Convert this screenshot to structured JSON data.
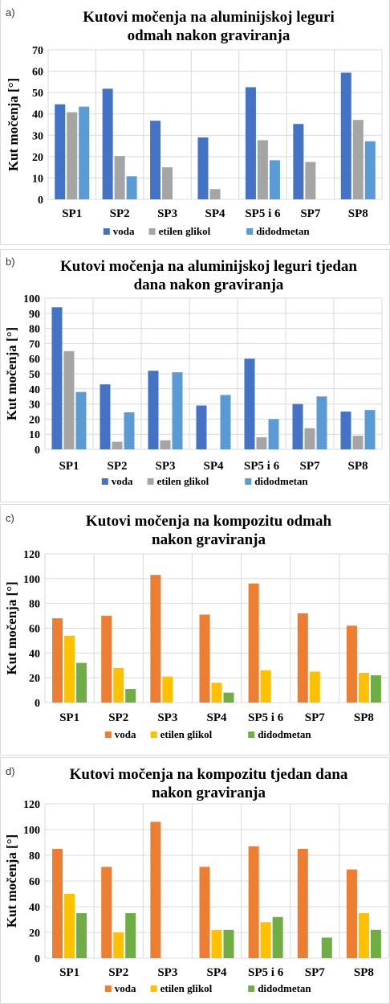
{
  "chart_data": [
    {
      "panel_label": "a)",
      "type": "bar",
      "title_lines": [
        "Kutovi močenja na aluminijskoj leguri",
        "odmah nakon graviranja"
      ],
      "ylabel": "Kut močenja [°]",
      "ylim": [
        0,
        70
      ],
      "yticks": [
        0,
        10,
        20,
        30,
        40,
        50,
        60,
        70
      ],
      "categories": [
        "SP1",
        "SP2",
        "SP3",
        "SP4",
        "SP5 i 6",
        "SP7",
        "SP8"
      ],
      "series": [
        {
          "name": "voda",
          "color": "#4472C4",
          "values": [
            44.5,
            51.8,
            36.8,
            29.0,
            52.5,
            35.3,
            59.3
          ]
        },
        {
          "name": "etilen glikol",
          "color": "#A5A5A5",
          "values": [
            40.8,
            20.3,
            15.0,
            4.8,
            27.7,
            17.5,
            37.2
          ]
        },
        {
          "name": "didodmetan",
          "color": "#5B9BD5",
          "values": [
            43.4,
            10.8,
            0,
            0,
            18.3,
            0,
            27.2
          ]
        }
      ],
      "grid": true,
      "legend": "bottom"
    },
    {
      "panel_label": "b)",
      "type": "bar",
      "title_lines": [
        "Kutovi močenja na aluminijskoj leguri tjedan",
        "dana nakon graviranja"
      ],
      "ylabel": "Kut močenja [°]",
      "ylim": [
        0,
        100
      ],
      "yticks": [
        0,
        10,
        20,
        30,
        40,
        50,
        60,
        70,
        80,
        90,
        100
      ],
      "categories": [
        "SP1",
        "SP2",
        "SP3",
        "SP4",
        "SP5 i 6",
        "SP7",
        "SP8"
      ],
      "series": [
        {
          "name": "voda",
          "color": "#4472C4",
          "values": [
            94,
            43,
            52,
            29,
            60,
            30,
            25
          ]
        },
        {
          "name": "etilen glikol",
          "color": "#A5A5A5",
          "values": [
            65,
            5,
            6,
            0,
            8,
            14,
            9
          ]
        },
        {
          "name": "didodmetan",
          "color": "#5B9BD5",
          "values": [
            38,
            24.5,
            51,
            36,
            20,
            35,
            26
          ]
        }
      ],
      "grid": true,
      "legend": "bottom"
    },
    {
      "panel_label": "c)",
      "type": "bar",
      "title_lines": [
        "Kutovi močenja na kompozitu odmah",
        "nakon graviranja"
      ],
      "ylabel": "Kut močenja [°]",
      "ylim": [
        0,
        120
      ],
      "yticks": [
        0,
        20,
        40,
        60,
        80,
        100,
        120
      ],
      "categories": [
        "SP1",
        "SP2",
        "SP3",
        "SP4",
        "SP5 i 6",
        "SP7",
        "SP8"
      ],
      "series": [
        {
          "name": "voda",
          "color": "#ED7D31",
          "values": [
            68,
            70,
            103,
            71,
            96,
            72,
            62
          ]
        },
        {
          "name": "etilen glikol",
          "color": "#FFC000",
          "values": [
            54,
            28,
            21,
            16,
            26,
            25,
            24
          ]
        },
        {
          "name": "didodmetan",
          "color": "#70AD47",
          "values": [
            32,
            11,
            0,
            8,
            0,
            0,
            22
          ]
        }
      ],
      "grid": true,
      "legend": "bottom"
    },
    {
      "panel_label": "d)",
      "type": "bar",
      "title_lines": [
        "Kutovi močenja na kompozitu tjedan dana",
        "nakon graviranja"
      ],
      "ylabel": "Kut močenja [°]",
      "ylim": [
        0,
        120
      ],
      "yticks": [
        0,
        20,
        40,
        60,
        80,
        100,
        120
      ],
      "categories": [
        "SP1",
        "SP2",
        "SP3",
        "SP4",
        "SP5 i 6",
        "SP7",
        "SP8"
      ],
      "series": [
        {
          "name": "voda",
          "color": "#ED7D31",
          "values": [
            85,
            71,
            106,
            71,
            87,
            85,
            69
          ]
        },
        {
          "name": "etilen glikol",
          "color": "#FFC000",
          "values": [
            50,
            20,
            0,
            22,
            28,
            0,
            35
          ]
        },
        {
          "name": "didodmetan",
          "color": "#70AD47",
          "values": [
            35,
            35,
            0,
            22,
            32,
            16,
            22
          ]
        }
      ],
      "grid": true,
      "legend": "bottom"
    }
  ]
}
